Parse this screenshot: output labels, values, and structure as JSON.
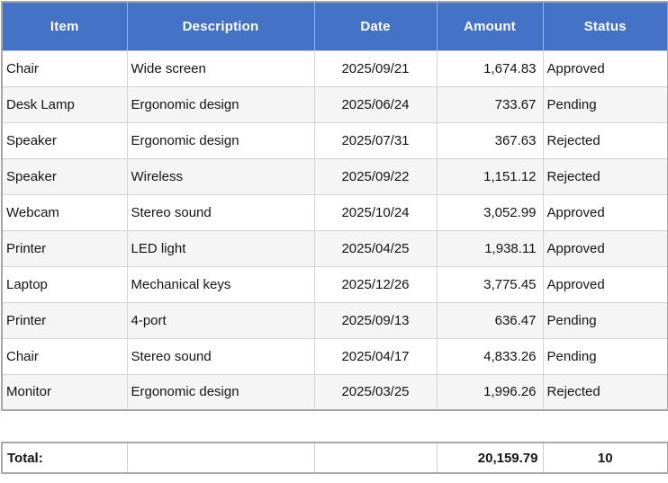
{
  "chart_data": {
    "type": "table",
    "title": "",
    "columns": [
      "Item",
      "Description",
      "Date",
      "Amount",
      "Status"
    ],
    "column_align": [
      "left",
      "left",
      "center",
      "right",
      "left"
    ],
    "rows": [
      [
        "Chair",
        "Wide screen",
        "2025/09/21",
        "1,674.83",
        "Approved"
      ],
      [
        "Desk Lamp",
        "Ergonomic design",
        "2025/06/24",
        "733.67",
        "Pending"
      ],
      [
        "Speaker",
        "Ergonomic design",
        "2025/07/31",
        "367.63",
        "Rejected"
      ],
      [
        "Speaker",
        "Wireless",
        "2025/09/22",
        "1,151.12",
        "Rejected"
      ],
      [
        "Webcam",
        "Stereo sound",
        "2025/10/24",
        "3,052.99",
        "Approved"
      ],
      [
        "Printer",
        "LED light",
        "2025/04/25",
        "1,938.11",
        "Approved"
      ],
      [
        "Laptop",
        "Mechanical keys",
        "2025/12/26",
        "3,775.45",
        "Approved"
      ],
      [
        "Printer",
        "4-port",
        "2025/09/13",
        "636.47",
        "Pending"
      ],
      [
        "Chair",
        "Stereo sound",
        "2025/04/17",
        "4,833.26",
        "Pending"
      ],
      [
        "Monitor",
        "Ergonomic design",
        "2025/03/25",
        "1,996.26",
        "Rejected"
      ]
    ],
    "totals": {
      "label": "Total:",
      "amount": "20,159.79",
      "count": "10"
    }
  },
  "colors": {
    "header_bg": "#4472C4",
    "header_text": "#FFFFFF",
    "row_stripe": "#F5F5F5",
    "grid_line": "#D4D4D4",
    "outer_frame": "#A6A6A6",
    "body_text": "#141414"
  }
}
